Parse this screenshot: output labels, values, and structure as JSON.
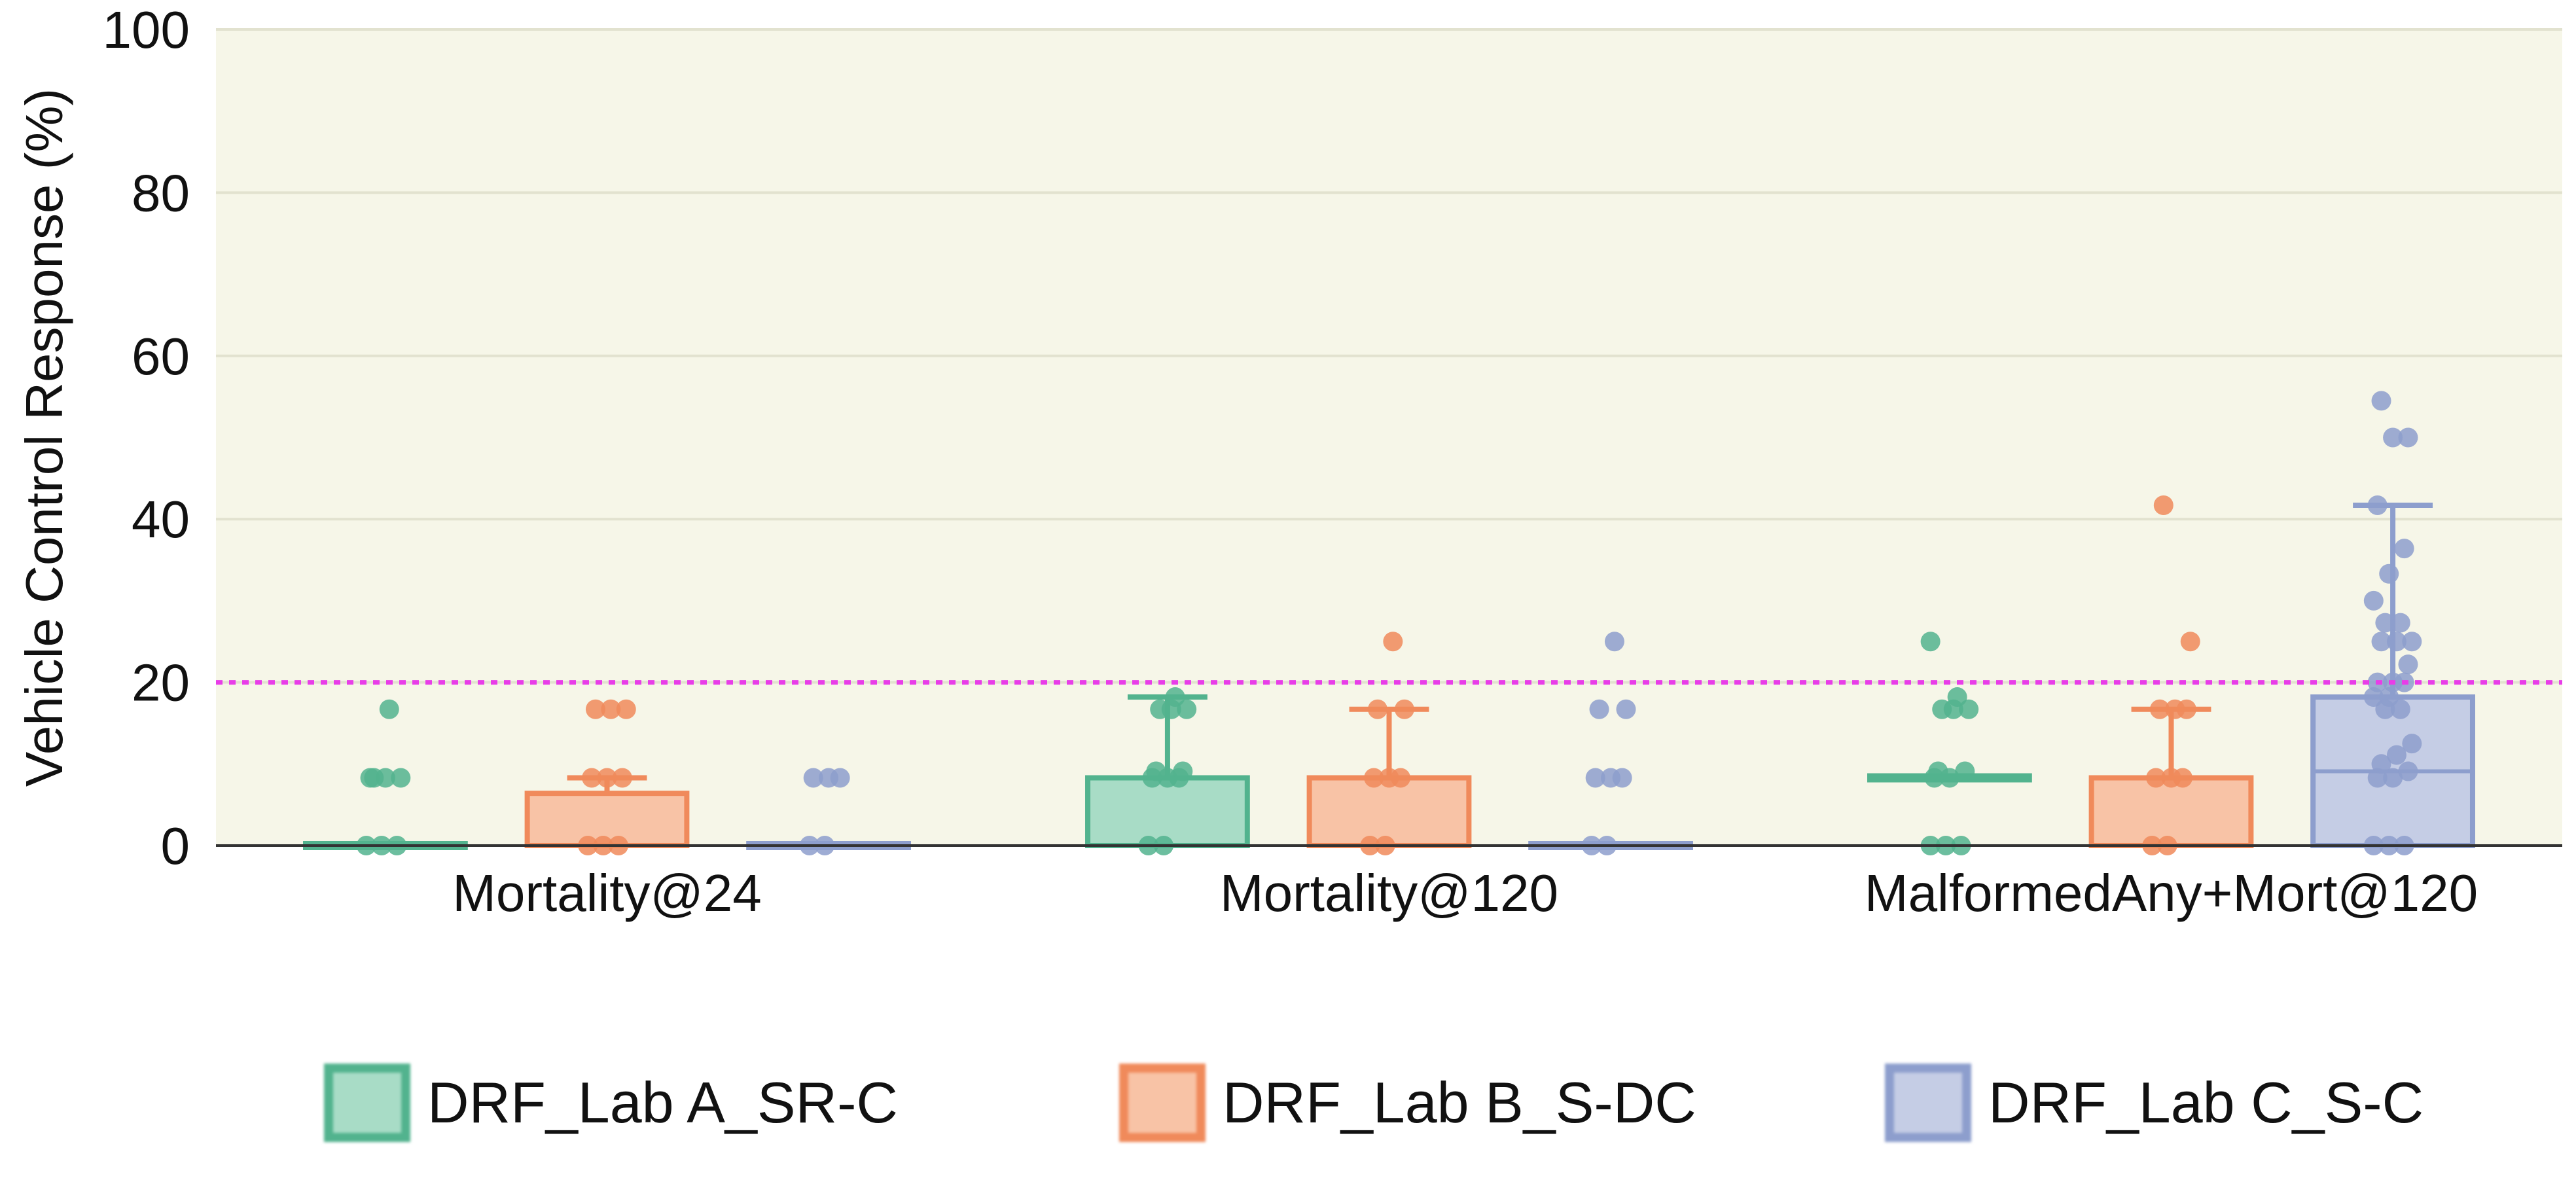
{
  "chart_data": {
    "type": "box",
    "title": "",
    "xlabel": "",
    "ylabel": "Vehicle Control Response (%)",
    "ylim": [
      0,
      100
    ],
    "yticks": [
      0,
      20,
      40,
      60,
      80,
      100
    ],
    "grid": true,
    "threshold": {
      "value": 20,
      "color": "#e83de8",
      "style": "dotted"
    },
    "legend_placement": "bottom",
    "categories": [
      "Mortality@24",
      "Mortality@120",
      "MalformedAny+Mort@120"
    ],
    "series": [
      {
        "name": "DRF_Lab A_SR-C",
        "color": "#52b38e",
        "fill": "#a8dcc6",
        "boxes": [
          {
            "min": 0,
            "q1": 0,
            "median": 0,
            "q3": 0,
            "max": 0,
            "points": [
              0,
              0,
              0,
              8.3,
              8.3,
              8.3,
              8.3,
              16.7
            ]
          },
          {
            "min": 0,
            "q1": 0,
            "median": 8.3,
            "q3": 8.3,
            "max": 18.2,
            "points": [
              0,
              0,
              8.3,
              8.3,
              8.3,
              9.1,
              9.1,
              16.7,
              16.7,
              16.7,
              18.2
            ]
          },
          {
            "min": 8.3,
            "q1": 8.3,
            "median": 8.3,
            "q3": 8.3,
            "max": 8.3,
            "points": [
              0,
              0,
              0,
              8.3,
              8.3,
              9.1,
              9.1,
              16.7,
              16.7,
              16.7,
              18.2,
              25
            ]
          }
        ]
      },
      {
        "name": "DRF_Lab B_S-DC",
        "color": "#f08a5b",
        "fill": "#f8c3a6",
        "boxes": [
          {
            "min": 0,
            "q1": 0,
            "median": 0,
            "q3": 6.4,
            "max": 8.3,
            "points": [
              0,
              0,
              0,
              8.3,
              8.3,
              8.3,
              16.7,
              16.7,
              16.7
            ]
          },
          {
            "min": 0,
            "q1": 0,
            "median": 0,
            "q3": 8.3,
            "max": 16.7,
            "points": [
              0,
              0,
              8.3,
              8.3,
              8.3,
              16.7,
              16.7,
              25
            ]
          },
          {
            "min": 0,
            "q1": 0,
            "median": 0,
            "q3": 8.3,
            "max": 16.7,
            "points": [
              0,
              0,
              8.3,
              8.3,
              8.3,
              16.7,
              16.7,
              16.7,
              25,
              41.7
            ]
          }
        ]
      },
      {
        "name": "DRF_Lab C_S-C",
        "color": "#8d9ecd",
        "fill": "#c5cde5",
        "boxes": [
          {
            "min": 0,
            "q1": 0,
            "median": 0,
            "q3": 0,
            "max": 0,
            "points": [
              0,
              0,
              8.3,
              8.3,
              8.3
            ]
          },
          {
            "min": 0,
            "q1": 0,
            "median": 0,
            "q3": 0,
            "max": 0,
            "points": [
              0,
              0,
              8.3,
              8.3,
              8.3,
              16.7,
              16.7,
              25
            ]
          },
          {
            "min": 0,
            "q1": 0,
            "median": 9.1,
            "q3": 18.2,
            "max": 41.7,
            "points": [
              0,
              0,
              0,
              8.3,
              8.3,
              9.1,
              10,
              11.1,
              12.5,
              16.7,
              16.7,
              18.2,
              18.2,
              20,
              20,
              20,
              22.2,
              25,
              25,
              25,
              27.3,
              27.3,
              30,
              33.3,
              36.4,
              41.7,
              50,
              50,
              54.5
            ]
          }
        ]
      }
    ]
  },
  "colors": {
    "plot_background": "#f6f6e8",
    "gridline": "#e2e2cf",
    "axis": "#333333",
    "threshold": "#e83de8"
  }
}
